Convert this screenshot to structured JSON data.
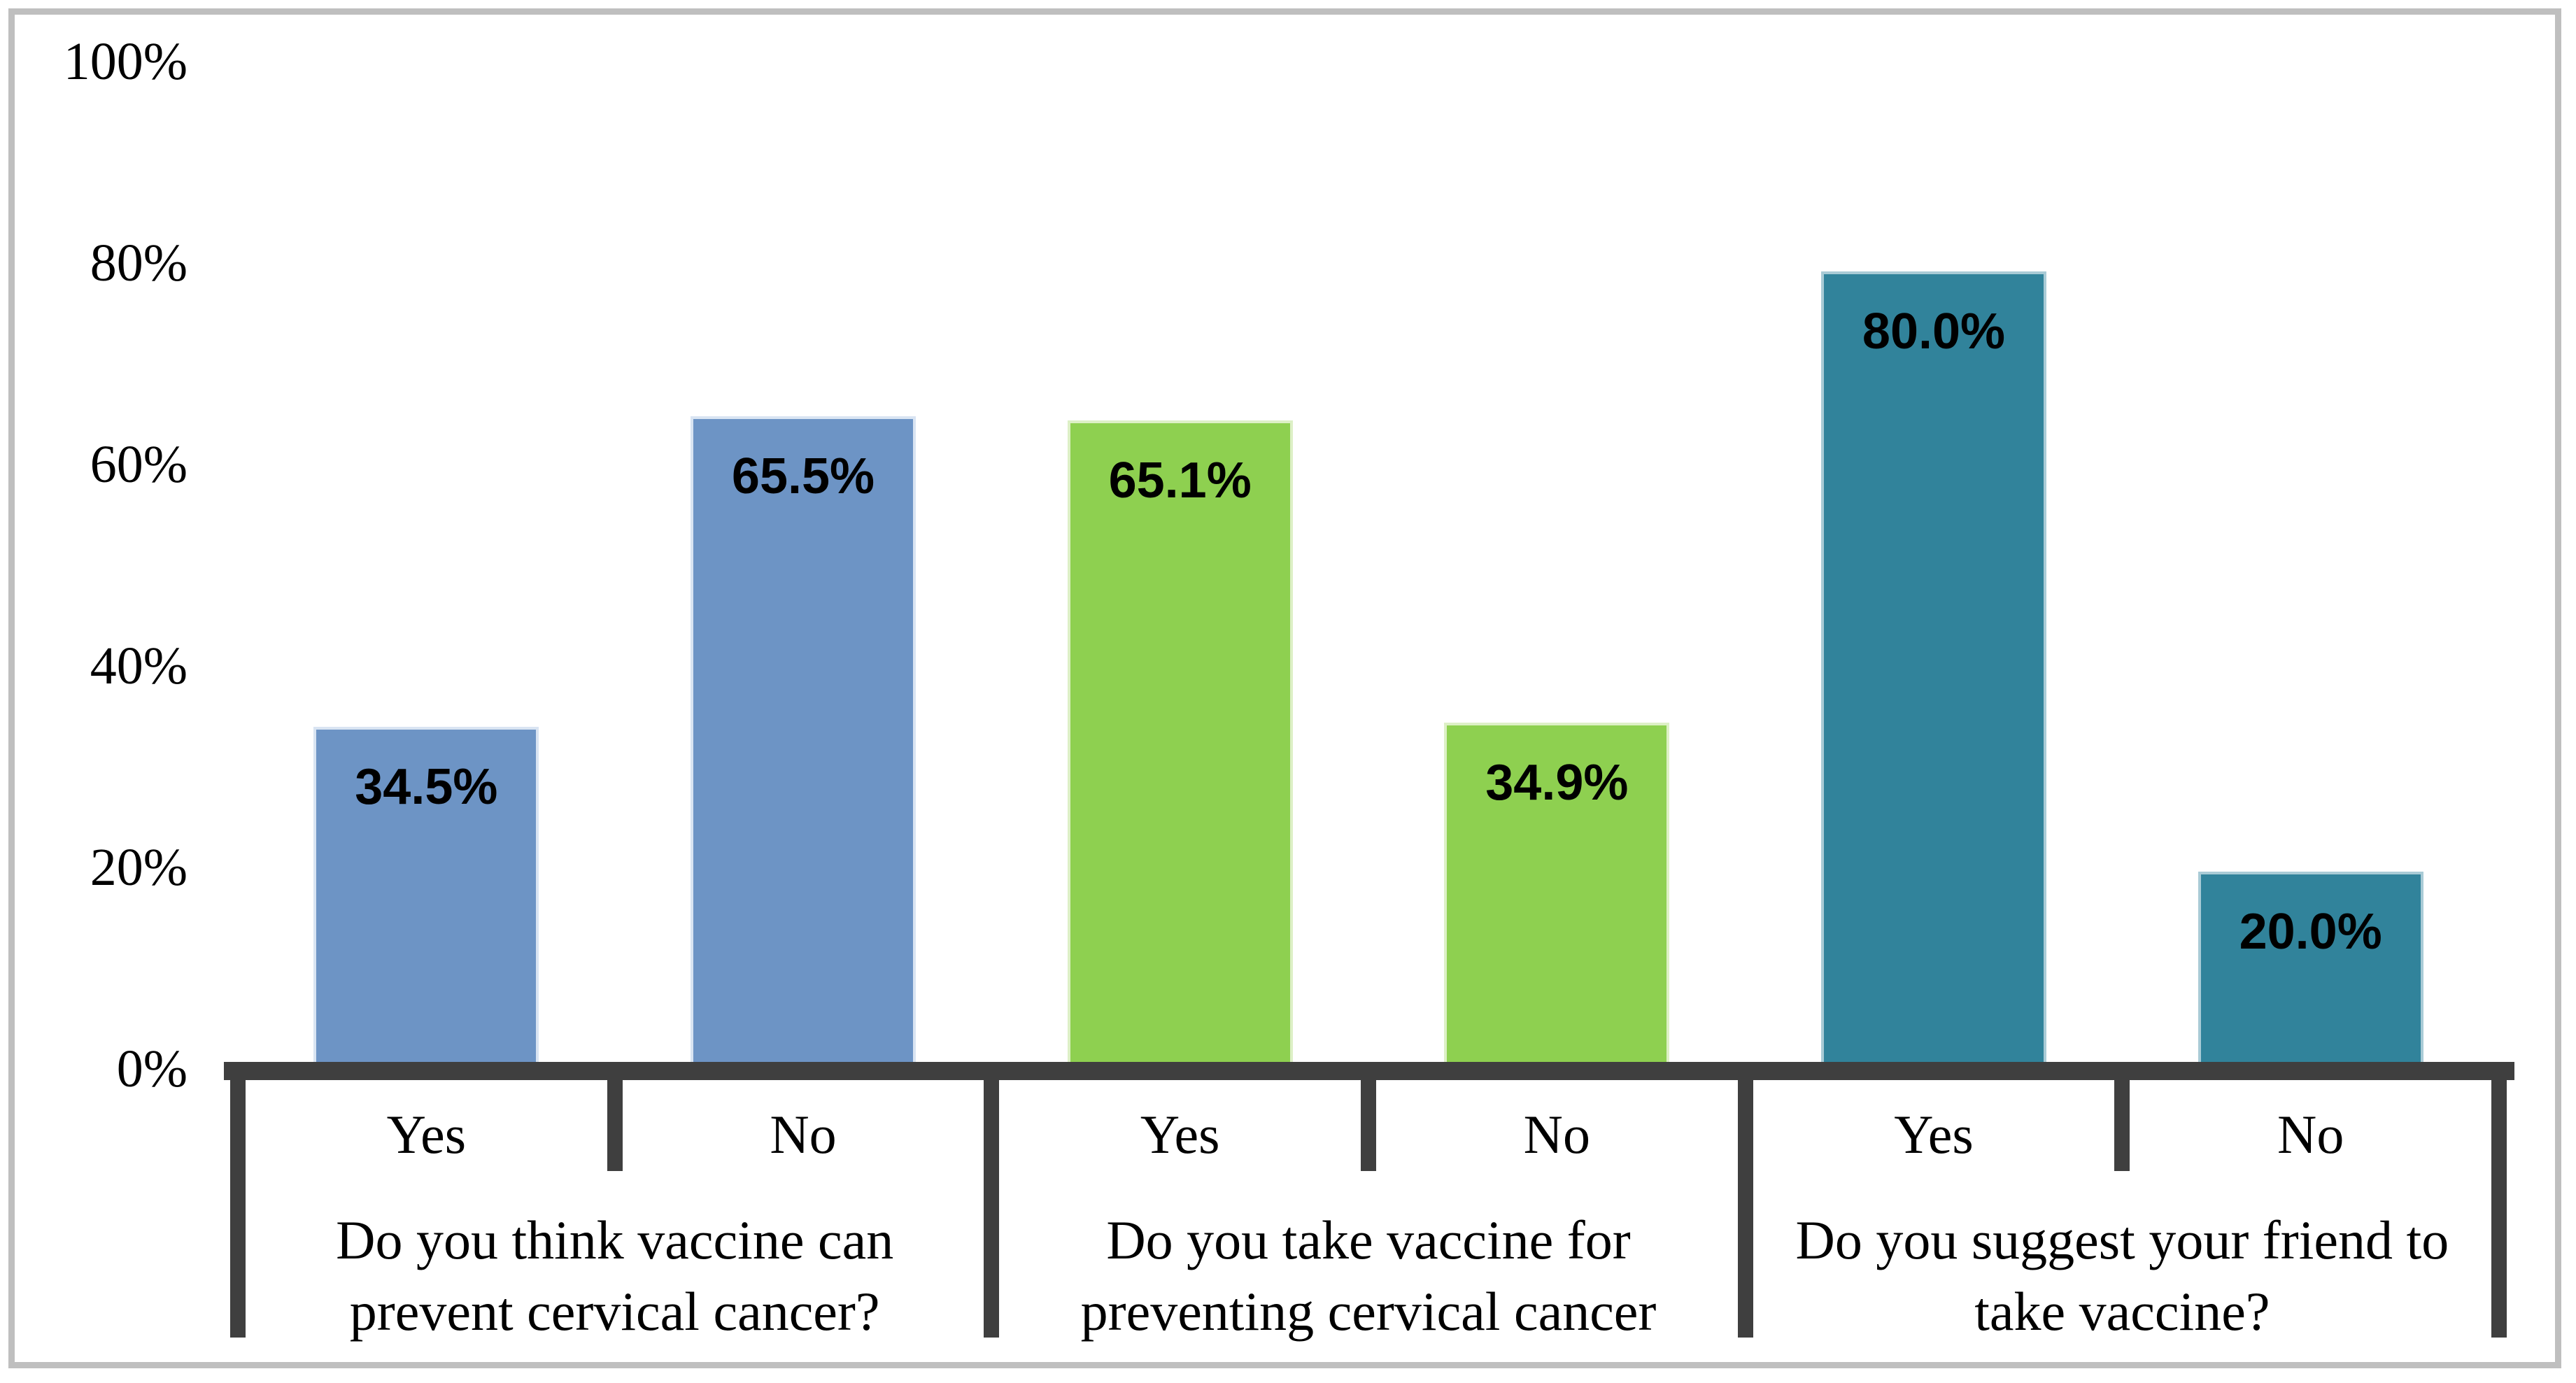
{
  "chart_data": {
    "type": "bar",
    "title": "",
    "xlabel": "",
    "ylabel": "",
    "ylim": [
      0,
      100
    ],
    "grid": false,
    "legend": null,
    "y_axis": {
      "ticks": [
        {
          "value": 0,
          "label": "0%"
        },
        {
          "value": 20,
          "label": "20%"
        },
        {
          "value": 40,
          "label": "40%"
        },
        {
          "value": 60,
          "label": "60%"
        },
        {
          "value": 80,
          "label": "80%"
        },
        {
          "value": 100,
          "label": "100%"
        }
      ]
    },
    "groups": [
      {
        "question_lines": [
          "Do you think vaccine can",
          "prevent cervical cancer?"
        ],
        "bar_color": "#6D94C5",
        "bar_border_color": "#D9E4F2",
        "bars": [
          {
            "category": "Yes",
            "value": 34.5,
            "label": "34.5%"
          },
          {
            "category": "No",
            "value": 65.5,
            "label": "65.5%"
          }
        ]
      },
      {
        "question_lines": [
          "Do you take vaccine for",
          "preventing cervical cancer"
        ],
        "bar_color": "#8ED050",
        "bar_border_color": "#DDF0C6",
        "bars": [
          {
            "category": "Yes",
            "value": 65.1,
            "label": "65.1%"
          },
          {
            "category": "No",
            "value": 34.9,
            "label": "34.9%"
          }
        ]
      },
      {
        "question_lines": [
          "Do you suggest your friend to",
          "take vaccine?"
        ],
        "bar_color": "#31839B",
        "bar_border_color": "#A9CBD6",
        "bars": [
          {
            "category": "Yes",
            "value": 80.0,
            "label": "80.0%"
          },
          {
            "category": "No",
            "value": 20.0,
            "label": "20.0%"
          }
        ]
      }
    ],
    "colors": {
      "axis_table_line": "#3F3F3F",
      "frame_border": "#BFBFBF",
      "text": "#000000",
      "background": "#FFFFFF"
    }
  }
}
